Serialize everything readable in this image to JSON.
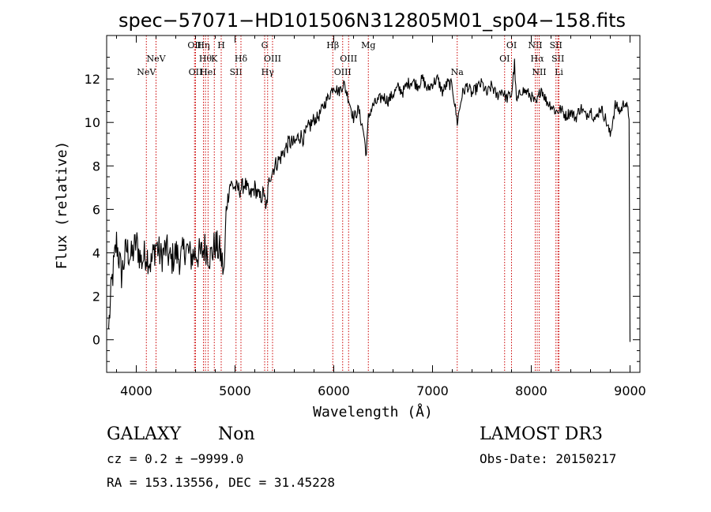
{
  "chart_data": {
    "type": "line",
    "title": "spec−57071−HD101506N312805M01_sp04−158.fits",
    "xlabel": "Wavelength (Å)",
    "ylabel": "Flux (relative)",
    "xlim": [
      3700,
      9100
    ],
    "ylim": [
      -1.5,
      14.0
    ],
    "x_ticks": [
      4000,
      5000,
      6000,
      7000,
      8000,
      9000
    ],
    "y_ticks": [
      0,
      2,
      4,
      6,
      8,
      10,
      12
    ],
    "grid": false,
    "line_color": "#000000",
    "marker_color": "#cc0000",
    "series": [
      {
        "x": [
          3720,
          3750,
          3800,
          3850,
          3900,
          3950,
          4000,
          4050,
          4100,
          4150,
          4200,
          4250,
          4300,
          4350,
          4400,
          4450,
          4500,
          4550,
          4600,
          4650,
          4700,
          4750,
          4800,
          4850,
          4870,
          4890,
          4910,
          4950,
          5000,
          5050,
          5100,
          5150,
          5200,
          5250,
          5300,
          5310,
          5350,
          5400,
          5450,
          5500,
          5550,
          5600,
          5650,
          5700,
          5750,
          5800,
          5850,
          5900,
          5950,
          6000,
          6050,
          6100,
          6150,
          6200,
          6250,
          6300,
          6330,
          6350,
          6370,
          6400,
          6450,
          6500,
          6550,
          6600,
          6650,
          6700,
          6750,
          6800,
          6850,
          6900,
          6950,
          7000,
          7050,
          7100,
          7150,
          7200,
          7250,
          7300,
          7350,
          7400,
          7450,
          7500,
          7550,
          7600,
          7650,
          7700,
          7750,
          7800,
          7830,
          7850,
          7900,
          7950,
          8000,
          8050,
          8100,
          8150,
          8200,
          8250,
          8300,
          8350,
          8400,
          8450,
          8500,
          8550,
          8600,
          8650,
          8700,
          8750,
          8800,
          8850,
          8900,
          8950,
          8990,
          9000
        ],
        "y": [
          0.5,
          2.5,
          4.5,
          3.0,
          4.2,
          3.8,
          4.5,
          3.6,
          4.0,
          3.5,
          4.4,
          3.8,
          4.2,
          3.6,
          4.0,
          3.7,
          4.3,
          3.8,
          4.0,
          3.9,
          4.3,
          3.8,
          4.4,
          4.0,
          3.5,
          3.0,
          6.0,
          7.2,
          7.0,
          6.9,
          7.2,
          6.6,
          7.0,
          6.5,
          6.8,
          5.8,
          7.5,
          8.0,
          8.3,
          8.7,
          9.1,
          9.0,
          9.4,
          9.3,
          9.8,
          10.1,
          10.3,
          10.8,
          11.2,
          11.7,
          11.4,
          11.8,
          11.1,
          10.2,
          10.6,
          9.6,
          8.5,
          10.2,
          10.5,
          10.8,
          11.0,
          11.2,
          11.0,
          11.3,
          11.6,
          11.4,
          11.8,
          11.9,
          11.7,
          12.0,
          11.5,
          11.8,
          12.0,
          11.4,
          11.8,
          11.7,
          10.0,
          11.3,
          11.7,
          11.3,
          11.6,
          11.8,
          11.3,
          11.7,
          11.2,
          11.5,
          11.1,
          11.3,
          12.7,
          10.9,
          11.5,
          11.4,
          11.2,
          10.8,
          11.6,
          11.0,
          10.8,
          10.5,
          10.6,
          10.3,
          10.5,
          10.2,
          10.7,
          10.3,
          10.6,
          10.1,
          10.7,
          10.2,
          9.4,
          10.8,
          10.5,
          11.0,
          10.3,
          -0.1
        ]
      }
    ],
    "lines_top": [
      {
        "x": 4102,
        "label": "NeV",
        "row": 2
      },
      {
        "x": 4200,
        "label": "NeV",
        "row": 1
      },
      {
        "x": 4590,
        "label": "OII",
        "row": 0
      },
      {
        "x": 4600,
        "label": "OII",
        "row": 2
      },
      {
        "x": 4680,
        "label": "Hη",
        "row": 0
      },
      {
        "x": 4700,
        "label": "Hθ",
        "row": 1
      },
      {
        "x": 4727,
        "label": "HeI",
        "row": 2
      },
      {
        "x": 4790,
        "label": "K",
        "row": 1
      },
      {
        "x": 4860,
        "label": "H",
        "row": 0
      },
      {
        "x": 5010,
        "label": "SII",
        "row": 2
      },
      {
        "x": 5060,
        "label": "Hδ",
        "row": 1
      },
      {
        "x": 5300,
        "label": "G",
        "row": 0
      },
      {
        "x": 5330,
        "label": "Hγ",
        "row": 2
      },
      {
        "x": 5380,
        "label": "OIII",
        "row": 1
      },
      {
        "x": 5990,
        "label": "Hβ",
        "row": 0
      },
      {
        "x": 6090,
        "label": "OIII",
        "row": 2
      },
      {
        "x": 6150,
        "label": "OIII",
        "row": 1
      },
      {
        "x": 6350,
        "label": "Mg",
        "row": 0
      },
      {
        "x": 7250,
        "label": "Na",
        "row": 2
      },
      {
        "x": 7730,
        "label": "OI",
        "row": 1
      },
      {
        "x": 7800,
        "label": "OI",
        "row": 0
      },
      {
        "x": 8040,
        "label": "NII",
        "row": 0
      },
      {
        "x": 8060,
        "label": "Hα",
        "row": 1
      },
      {
        "x": 8080,
        "label": "NII",
        "row": 2
      },
      {
        "x": 8250,
        "label": "SII",
        "row": 0
      },
      {
        "x": 8270,
        "label": "SII",
        "row": 1
      },
      {
        "x": 8280,
        "label": "Li",
        "row": 2
      }
    ]
  },
  "info": {
    "object_class": "GALAXY",
    "subclass": "Non",
    "survey": "LAMOST DR3",
    "cz_line": "cz = 0.2 ± −9999.0",
    "obs_date": "Obs-Date: 20150217",
    "coords": "RA = 153.13556, DEC =  31.45228"
  }
}
